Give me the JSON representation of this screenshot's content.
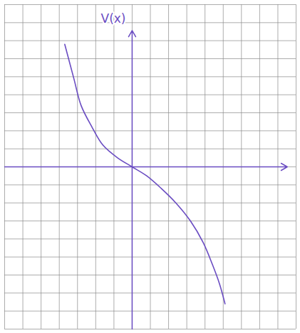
{
  "chart_data": {
    "type": "line",
    "ylabel": "V(x)",
    "x": [
      -3.7,
      -3.2,
      -2.8,
      -2.2,
      -1.6,
      -0.8,
      0,
      0.8,
      1.6,
      2.4,
      3.2,
      3.9,
      4.4,
      4.8,
      5.1
    ],
    "values": [
      6.8,
      4.9,
      3.4,
      2.2,
      1.2,
      0.5,
      0,
      -0.5,
      -1.2,
      -2.0,
      -3.0,
      -4.2,
      -5.4,
      -6.5,
      -7.6
    ],
    "color": "#6a4cc2",
    "xlim": [
      -7,
      9
    ],
    "ylim": [
      -9,
      9
    ],
    "xticks": [
      -7,
      -6,
      -5,
      -4,
      -3,
      -2,
      -1,
      0,
      1,
      2,
      3,
      4,
      5,
      6,
      7,
      8,
      9
    ],
    "yticks": [
      -9,
      -8,
      -7,
      -6,
      -5,
      -4,
      -3,
      -2,
      -1,
      0,
      1,
      2,
      3,
      4,
      5,
      6,
      7,
      8,
      9
    ],
    "grid": true,
    "tick_labels": false
  }
}
